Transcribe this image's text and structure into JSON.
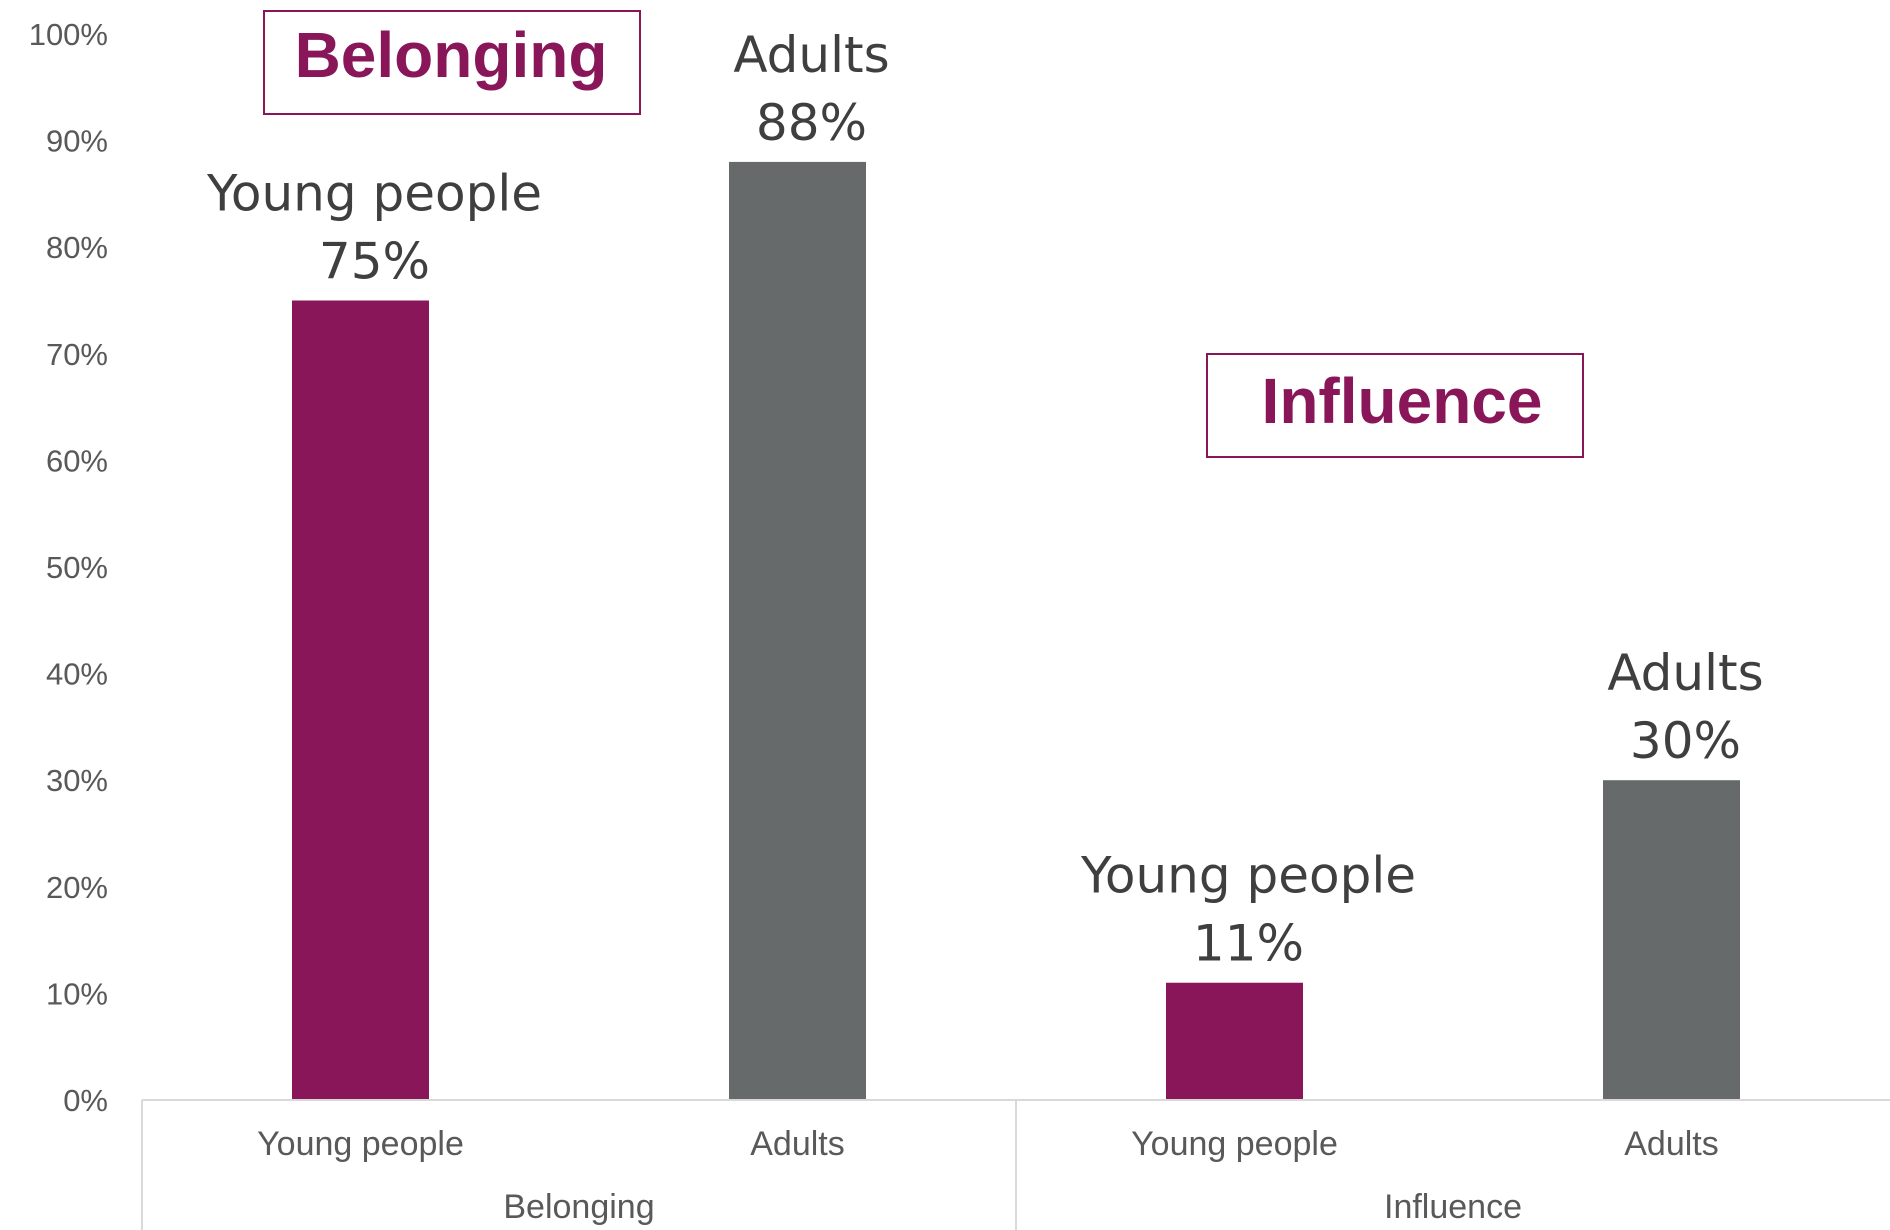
{
  "chart_data": {
    "type": "bar",
    "groups": [
      "Belonging",
      "Influence"
    ],
    "categories": [
      "Young people",
      "Adults"
    ],
    "series": [
      {
        "group": "Belonging",
        "category": "Young people",
        "value": 75,
        "label_line1": "Young people",
        "label_line2": "75%"
      },
      {
        "group": "Belonging",
        "category": "Adults",
        "value": 88,
        "label_line1": "Adults",
        "label_line2": "88%"
      },
      {
        "group": "Influence",
        "category": "Young people",
        "value": 11,
        "label_line1": "Young people",
        "label_line2": "11%"
      },
      {
        "group": "Influence",
        "category": "Adults",
        "value": 30,
        "label_line1": "Adults",
        "label_line2": "30%"
      }
    ],
    "ylim": [
      0,
      100
    ],
    "yticks": [
      "0%",
      "10%",
      "20%",
      "30%",
      "40%",
      "50%",
      "60%",
      "70%",
      "80%",
      "90%",
      "100%"
    ],
    "annotations": [
      "Belonging",
      "Influence"
    ],
    "grid": false,
    "legend": "none",
    "colors": {
      "Young people": "#8a165a",
      "Adults": "#676a6a",
      "annotation": "#8a165a",
      "axis": "#d9d9d9"
    }
  }
}
